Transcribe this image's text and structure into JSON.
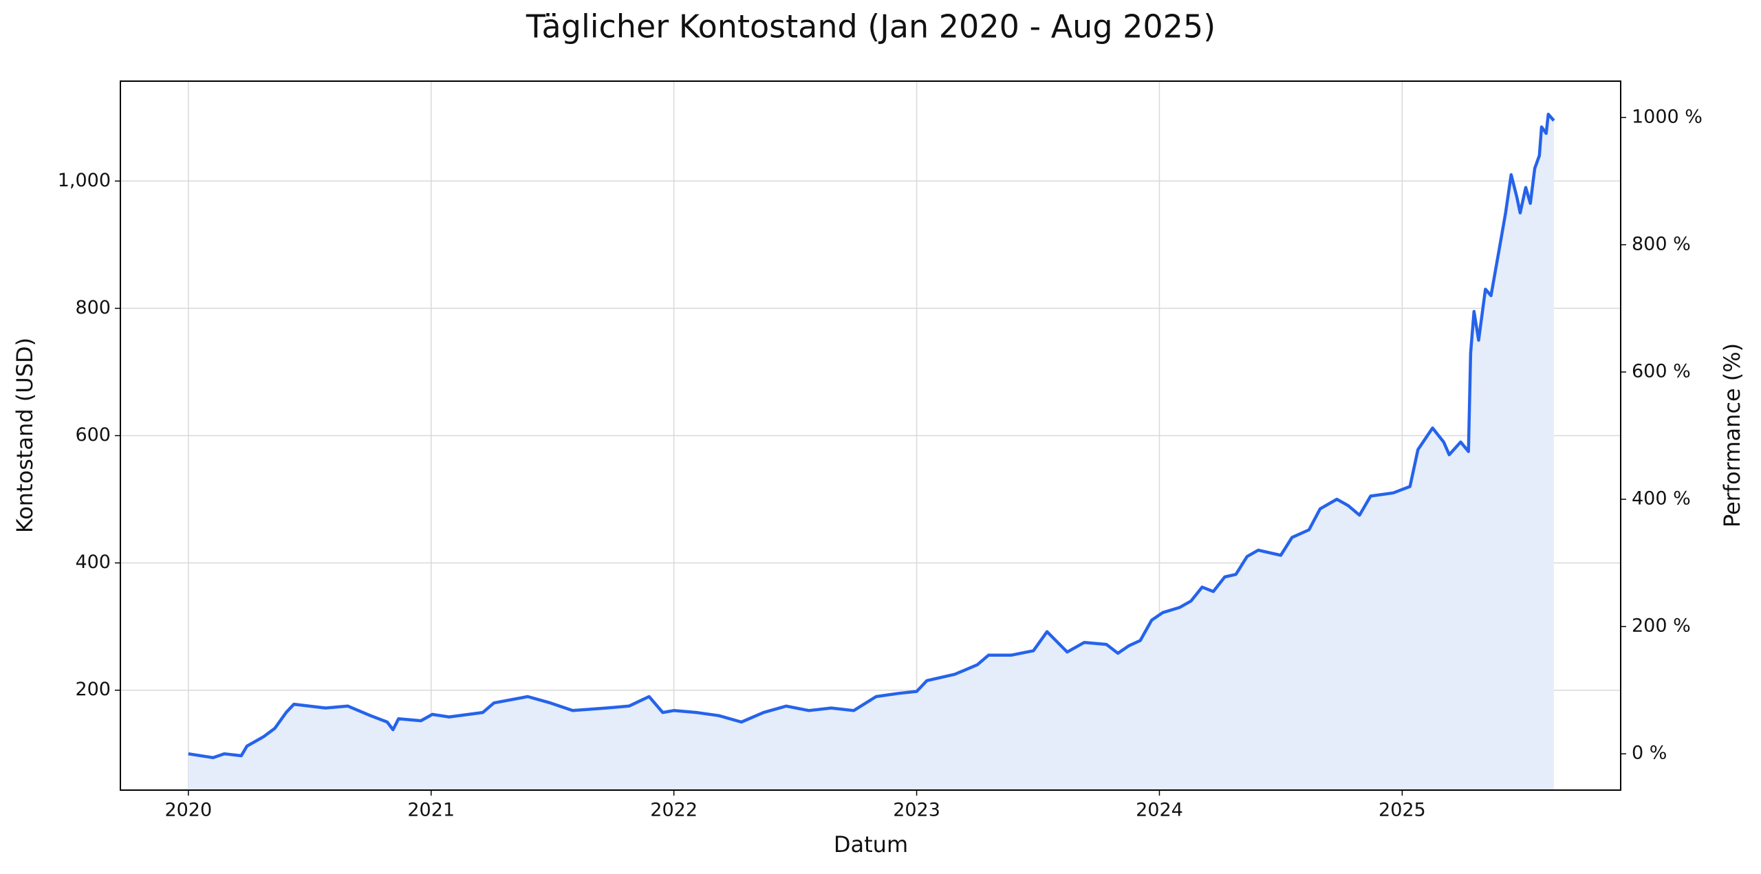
{
  "chart_data": {
    "type": "line",
    "title": "Täglicher Kontostand (Jan 2020 - Aug 2025)",
    "xlabel": "Datum",
    "ylabel": "Kontostand (USD)",
    "y2label": "Performance (%)",
    "grid": true,
    "xlim": [
      2019.72,
      2025.9
    ],
    "xticks": [
      2020,
      2021,
      2022,
      2023,
      2024,
      2025
    ],
    "ylim": [
      43,
      1157
    ],
    "yticks": [
      200,
      400,
      600,
      800,
      {
        "value": 1000,
        "label": "1,000"
      }
    ],
    "y2lim": [
      -57,
      1057
    ],
    "y2ticks": [
      {
        "value": 0,
        "label": "0 %"
      },
      {
        "value": 200,
        "label": "200 %"
      },
      {
        "value": 400,
        "label": "400 %"
      },
      {
        "value": 600,
        "label": "600 %"
      },
      {
        "value": 800,
        "label": "800 %"
      },
      {
        "value": 1000,
        "label": "1000 %"
      }
    ],
    "x": [
      2020.0,
      2020.102,
      2020.148,
      2020.218,
      2020.241,
      2020.31,
      2020.356,
      2020.403,
      2020.435,
      2020.565,
      2020.657,
      2020.75,
      2020.819,
      2020.843,
      2020.866,
      2020.958,
      2021.005,
      2021.074,
      2021.213,
      2021.259,
      2021.398,
      2021.491,
      2021.583,
      2021.722,
      2021.815,
      2021.898,
      2021.954,
      2022.0,
      2022.093,
      2022.185,
      2022.278,
      2022.37,
      2022.463,
      2022.556,
      2022.648,
      2022.741,
      2022.833,
      2022.926,
      2023.0,
      2023.042,
      2023.157,
      2023.25,
      2023.296,
      2023.389,
      2023.481,
      2023.537,
      2023.62,
      2023.69,
      2023.782,
      2023.829,
      2023.875,
      2023.921,
      2023.968,
      2024.014,
      2024.083,
      2024.13,
      2024.176,
      2024.222,
      2024.269,
      2024.315,
      2024.361,
      2024.407,
      2024.5,
      2024.546,
      2024.616,
      2024.662,
      2024.731,
      2024.778,
      2024.824,
      2024.87,
      2024.963,
      2025.032,
      2025.065,
      2025.125,
      2025.171,
      2025.194,
      2025.241,
      2025.273,
      2025.282,
      2025.296,
      2025.315,
      2025.343,
      2025.366,
      2025.403,
      2025.426,
      2025.449,
      2025.472,
      2025.486,
      2025.509,
      2025.528,
      2025.546,
      2025.565,
      2025.574,
      2025.593,
      2025.602,
      2025.625
    ],
    "series": [
      {
        "color": "#2563eb",
        "fill": "#e5edfb",
        "values": [
          100,
          94,
          100,
          97,
          112,
          127,
          140,
          165,
          178,
          172,
          175,
          160,
          150,
          138,
          155,
          152,
          162,
          158,
          165,
          180,
          190,
          180,
          168,
          172,
          175,
          190,
          165,
          168,
          165,
          160,
          150,
          165,
          175,
          168,
          172,
          168,
          190,
          195,
          198,
          215,
          225,
          240,
          255,
          255,
          262,
          292,
          260,
          275,
          272,
          258,
          270,
          278,
          310,
          322,
          330,
          340,
          362,
          355,
          378,
          382,
          410,
          420,
          412,
          440,
          452,
          485,
          500,
          490,
          475,
          505,
          510,
          520,
          578,
          612,
          590,
          570,
          590,
          575,
          730,
          795,
          750,
          830,
          820,
          900,
          950,
          1010,
          975,
          950,
          990,
          965,
          1020,
          1040,
          1085,
          1075,
          1105,
          1095
        ]
      }
    ]
  }
}
